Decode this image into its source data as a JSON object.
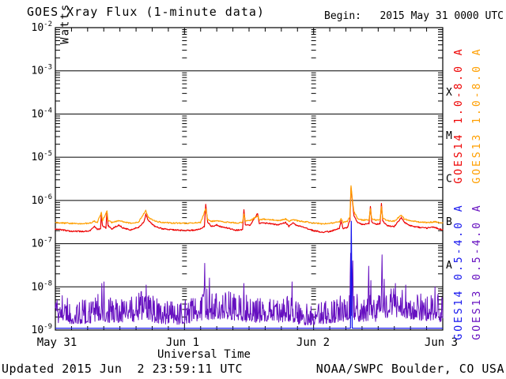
{
  "header": {
    "begin_label": "Begin:   2015 May 31 0000 UTC"
  },
  "footer": {
    "updated": "Updated 2015 Jun  2 23:59:11 UTC",
    "source": "NOAA/SWPC Boulder, CO USA"
  },
  "chart_data": {
    "type": "line",
    "title": "GOES Xray Flux (1-minute data)",
    "xlabel": "Universal Time",
    "ylabel": {
      "base": "Watts m",
      "exp": "-2"
    },
    "y_scale": "log",
    "ylim": [
      1e-09,
      0.01
    ],
    "y_tick_exponents": [
      -2,
      -3,
      -4,
      -5,
      -6,
      -7,
      -8,
      -9
    ],
    "x_hours_range": [
      0,
      72
    ],
    "x_tick_labels": [
      "May 31",
      "Jun 1",
      "Jun 2",
      "Jun 3"
    ],
    "x_day_boundaries_hours": [
      24,
      48
    ],
    "x_minor_tick_hours": 3,
    "grid": "solid horizontal decade lines, dotted log-tick columns at day boundaries",
    "legend_position": "right-vertical",
    "flare_classes": [
      {
        "label": "X",
        "between_exp": [
          -4,
          -3
        ]
      },
      {
        "label": "M",
        "between_exp": [
          -5,
          -4
        ]
      },
      {
        "label": "C",
        "between_exp": [
          -6,
          -5
        ]
      },
      {
        "label": "B",
        "between_exp": [
          -7,
          -6
        ]
      },
      {
        "label": "A",
        "between_exp": [
          -8,
          -7
        ]
      }
    ],
    "series": [
      {
        "name": "GOES14 1.0-8.0 A",
        "satellite": "GOES14",
        "channel": "1.0-8.0 A",
        "color": "#ee0000",
        "style": "noisy-line",
        "points": [
          [
            0,
            2.2e-07
          ],
          [
            1.5,
            2.05e-07
          ],
          [
            3,
            1.95e-07
          ],
          [
            5,
            1.9e-07
          ],
          [
            6.5,
            2e-07
          ],
          [
            7.3,
            2.5e-07
          ],
          [
            7.8,
            2.15e-07
          ],
          [
            8.4,
            2.2e-07
          ],
          [
            8.55,
            5e-07
          ],
          [
            8.75,
            2.6e-07
          ],
          [
            9.4,
            2.3e-07
          ],
          [
            9.6,
            5.5e-07
          ],
          [
            9.8,
            2.6e-07
          ],
          [
            10.5,
            2.2e-07
          ],
          [
            11.8,
            2.7e-07
          ],
          [
            12.6,
            2.3e-07
          ],
          [
            14,
            2.1e-07
          ],
          [
            15.5,
            2.4e-07
          ],
          [
            16.5,
            3.2e-07
          ],
          [
            16.8,
            4.8e-07
          ],
          [
            17.3,
            3.4e-07
          ],
          [
            18.5,
            2.5e-07
          ],
          [
            20,
            2.2e-07
          ],
          [
            22,
            2.1e-07
          ],
          [
            24,
            2e-07
          ],
          [
            25.5,
            2.05e-07
          ],
          [
            27,
            2.2e-07
          ],
          [
            27.7,
            2.5e-07
          ],
          [
            27.95,
            8e-07
          ],
          [
            28.3,
            3.2e-07
          ],
          [
            29,
            2.5e-07
          ],
          [
            30,
            2.7e-07
          ],
          [
            31,
            2.4e-07
          ],
          [
            32,
            2.3e-07
          ],
          [
            33.5,
            2.05e-07
          ],
          [
            34.8,
            2.1e-07
          ],
          [
            35.05,
            6e-07
          ],
          [
            35.3,
            2.8e-07
          ],
          [
            36.2,
            2.6e-07
          ],
          [
            37.6,
            5e-07
          ],
          [
            37.9,
            2.9e-07
          ],
          [
            38.8,
            3e-07
          ],
          [
            40,
            2.9e-07
          ],
          [
            41.5,
            2.7e-07
          ],
          [
            42.8,
            3.1e-07
          ],
          [
            43.4,
            2.5e-07
          ],
          [
            44.2,
            3e-07
          ],
          [
            45,
            2.6e-07
          ],
          [
            46.5,
            2.3e-07
          ],
          [
            48,
            2e-07
          ],
          [
            49.5,
            1.85e-07
          ],
          [
            51,
            1.9e-07
          ],
          [
            52.8,
            2.3e-07
          ],
          [
            53.1,
            3.3e-07
          ],
          [
            53.5,
            2.2e-07
          ],
          [
            54.3,
            2.4e-07
          ],
          [
            54.75,
            3.5e-07
          ],
          [
            54.95,
            2e-06
          ],
          [
            55.15,
            1.1e-06
          ],
          [
            55.5,
            4.5e-07
          ],
          [
            56.2,
            3e-07
          ],
          [
            57,
            2.8e-07
          ],
          [
            58.3,
            2.9e-07
          ],
          [
            58.55,
            7.5e-07
          ],
          [
            58.8,
            3.2e-07
          ],
          [
            59.5,
            2.8e-07
          ],
          [
            60.35,
            2.9e-07
          ],
          [
            60.6,
            8.5e-07
          ],
          [
            60.85,
            3.3e-07
          ],
          [
            61.8,
            2.6e-07
          ],
          [
            63,
            2.5e-07
          ],
          [
            64.3,
            4e-07
          ],
          [
            64.9,
            3.1e-07
          ],
          [
            66,
            2.6e-07
          ],
          [
            67.5,
            2.4e-07
          ],
          [
            69,
            2.3e-07
          ],
          [
            70.5,
            2.4e-07
          ],
          [
            71.3,
            2.2e-07
          ],
          [
            72,
            2.1e-07
          ]
        ]
      },
      {
        "name": "GOES13 1.0-8.0 A",
        "satellite": "GOES13",
        "channel": "1.0-8.0 A",
        "color": "#ff9f00",
        "style": "noisy-line",
        "points": [
          [
            0,
            3.1e-07
          ],
          [
            1.5,
            3e-07
          ],
          [
            3,
            2.95e-07
          ],
          [
            5,
            2.9e-07
          ],
          [
            6.5,
            3e-07
          ],
          [
            7.3,
            3.3e-07
          ],
          [
            7.8,
            3.1e-07
          ],
          [
            8.55,
            5.2e-07
          ],
          [
            8.75,
            3.4e-07
          ],
          [
            9.6,
            5.6e-07
          ],
          [
            9.8,
            3.4e-07
          ],
          [
            10.5,
            3.1e-07
          ],
          [
            11.8,
            3.4e-07
          ],
          [
            12.6,
            3.2e-07
          ],
          [
            14,
            3e-07
          ],
          [
            15.5,
            3.2e-07
          ],
          [
            16.8,
            5.8e-07
          ],
          [
            17.3,
            4e-07
          ],
          [
            18.5,
            3.3e-07
          ],
          [
            20,
            3.1e-07
          ],
          [
            22,
            3e-07
          ],
          [
            24,
            2.95e-07
          ],
          [
            25.5,
            3e-07
          ],
          [
            27,
            3.05e-07
          ],
          [
            27.95,
            6.5e-07
          ],
          [
            28.3,
            3.6e-07
          ],
          [
            29,
            3.3e-07
          ],
          [
            30,
            3.4e-07
          ],
          [
            31,
            3.2e-07
          ],
          [
            32,
            3.15e-07
          ],
          [
            33.5,
            3e-07
          ],
          [
            34.8,
            3.1e-07
          ],
          [
            35.05,
            4.8e-07
          ],
          [
            35.3,
            3.4e-07
          ],
          [
            36.2,
            3.4e-07
          ],
          [
            37.6,
            4.4e-07
          ],
          [
            37.9,
            3.5e-07
          ],
          [
            38.8,
            3.7e-07
          ],
          [
            40,
            3.6e-07
          ],
          [
            41.5,
            3.4e-07
          ],
          [
            42.8,
            3.7e-07
          ],
          [
            43.4,
            3.3e-07
          ],
          [
            44.2,
            3.6e-07
          ],
          [
            45,
            3.4e-07
          ],
          [
            46.5,
            3.2e-07
          ],
          [
            48,
            3e-07
          ],
          [
            49.5,
            2.9e-07
          ],
          [
            51,
            2.95e-07
          ],
          [
            52.8,
            3.2e-07
          ],
          [
            53.1,
            3.7e-07
          ],
          [
            53.5,
            3.1e-07
          ],
          [
            54.3,
            3.3e-07
          ],
          [
            54.75,
            4.2e-07
          ],
          [
            54.95,
            2.2e-06
          ],
          [
            55.15,
            1.2e-06
          ],
          [
            55.5,
            5.5e-07
          ],
          [
            56.2,
            3.8e-07
          ],
          [
            57,
            3.5e-07
          ],
          [
            58.3,
            3.6e-07
          ],
          [
            58.55,
            6.5e-07
          ],
          [
            58.8,
            3.8e-07
          ],
          [
            59.5,
            3.5e-07
          ],
          [
            60.35,
            3.6e-07
          ],
          [
            60.6,
            7e-07
          ],
          [
            60.85,
            3.9e-07
          ],
          [
            61.8,
            3.4e-07
          ],
          [
            63,
            3.3e-07
          ],
          [
            64.3,
            4.6e-07
          ],
          [
            64.9,
            3.7e-07
          ],
          [
            66,
            3.4e-07
          ],
          [
            67.5,
            3.2e-07
          ],
          [
            69,
            3.1e-07
          ],
          [
            70.5,
            3.2e-07
          ],
          [
            71.3,
            3.1e-07
          ],
          [
            72,
            3e-07
          ]
        ]
      },
      {
        "name": "GOES14 0.5-4.0 A",
        "satellite": "GOES14",
        "channel": "0.5-4.0 A",
        "color": "#1414ee",
        "style": "line",
        "points": [
          [
            0,
            1.1e-09
          ],
          [
            54.85,
            1.1e-09
          ],
          [
            55.0,
            3.3e-07
          ],
          [
            55.08,
            2.5e-08
          ],
          [
            55.18,
            1.1e-09
          ],
          [
            72,
            1.1e-09
          ]
        ]
      },
      {
        "name": "GOES13 0.5-4.0 A",
        "satellite": "GOES13",
        "channel": "0.5-4.0 A",
        "color": "#6610c0",
        "style": "noise-band",
        "noise_envelope": [
          [
            0,
            1.5e-09,
            7e-09
          ],
          [
            2,
            1.4e-09,
            6e-09
          ],
          [
            4,
            1.4e-09,
            5e-09
          ],
          [
            6,
            1.4e-09,
            5e-09
          ],
          [
            8,
            1.5e-09,
            7e-09
          ],
          [
            10,
            1.5e-09,
            6e-09
          ],
          [
            12,
            1.5e-09,
            6e-09
          ],
          [
            14,
            1.5e-09,
            6e-09
          ],
          [
            16,
            1.6e-09,
            8e-09
          ],
          [
            18,
            1.5e-09,
            7e-09
          ],
          [
            20,
            1.4e-09,
            5e-09
          ],
          [
            22,
            1.3e-09,
            4.5e-09
          ],
          [
            24,
            1.4e-09,
            5e-09
          ],
          [
            26,
            1.5e-09,
            6e-09
          ],
          [
            28,
            1.7e-09,
            9e-09
          ],
          [
            30,
            1.8e-09,
            9e-09
          ],
          [
            32,
            1.8e-09,
            8e-09
          ],
          [
            34,
            1.6e-09,
            7e-09
          ],
          [
            36,
            1.5e-09,
            6.5e-09
          ],
          [
            38,
            1.5e-09,
            6e-09
          ],
          [
            40,
            1.6e-09,
            6.5e-09
          ],
          [
            42,
            1.5e-09,
            6e-09
          ],
          [
            44,
            1.5e-09,
            6.5e-09
          ],
          [
            46,
            1.3e-09,
            4.5e-09
          ],
          [
            48,
            1.3e-09,
            4.5e-09
          ],
          [
            50,
            1.4e-09,
            5e-09
          ],
          [
            52,
            1.5e-09,
            5.5e-09
          ],
          [
            54,
            1.6e-09,
            7e-09
          ],
          [
            56,
            1.6e-09,
            7e-09
          ],
          [
            58,
            1.5e-09,
            6.5e-09
          ],
          [
            60,
            1.6e-09,
            7e-09
          ],
          [
            62,
            2e-09,
            1e-08
          ],
          [
            64,
            2e-09,
            9.5e-09
          ],
          [
            66,
            1.8e-09,
            8.5e-09
          ],
          [
            68,
            1.6e-09,
            7e-09
          ],
          [
            70,
            1.7e-09,
            7.5e-09
          ],
          [
            72,
            1.5e-09,
            6.5e-09
          ]
        ],
        "spikes": [
          [
            8.6,
            1.2e-08
          ],
          [
            9.0,
            1.3e-08
          ],
          [
            16.9,
            1.1e-08
          ],
          [
            27.75,
            3.5e-08
          ],
          [
            28.6,
            1.6e-08
          ],
          [
            35.0,
            1.2e-08
          ],
          [
            44.0,
            1.3e-08
          ],
          [
            54.9,
            6e-08
          ],
          [
            55.3,
            4e-08
          ],
          [
            58.2,
            3e-08
          ],
          [
            58.6,
            1.4e-08
          ],
          [
            60.7,
            5.5e-08
          ],
          [
            61.1,
            1.5e-08
          ],
          [
            63.2,
            1.2e-08
          ],
          [
            65.1,
            1.1e-08
          ],
          [
            70.6,
            1e-08
          ]
        ]
      }
    ]
  }
}
